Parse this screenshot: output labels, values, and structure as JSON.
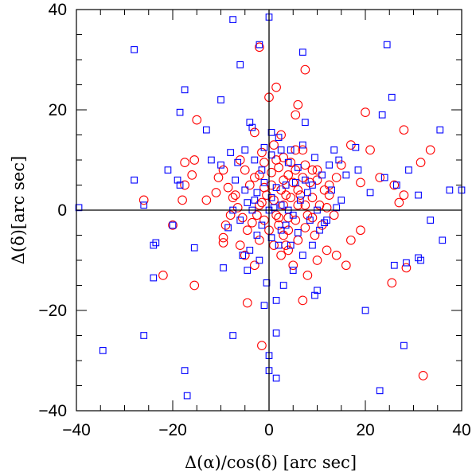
{
  "chart_data": {
    "type": "scatter",
    "title": "",
    "xlabel": "Δ(α)/cos(δ) [arc sec]",
    "ylabel": "Δ(δ)[arc sec]",
    "xlim": [
      -40,
      40
    ],
    "ylim": [
      -40,
      40
    ],
    "x_ticks": [
      -40,
      -20,
      0,
      20,
      40
    ],
    "y_ticks": [
      -40,
      -20,
      0,
      20,
      40
    ],
    "x_tick_labels": [
      "−40",
      "−20",
      "0",
      "20",
      "40"
    ],
    "y_tick_labels": [
      "−40",
      "−20",
      "0",
      "20",
      "40"
    ],
    "grid": false,
    "zero_lines": true,
    "series": [
      {
        "marker": "circle",
        "color": "#ff0000",
        "points": [
          [
            -2,
            32.5
          ],
          [
            1.5,
            24.5
          ],
          [
            6,
            21
          ],
          [
            5.5,
            19
          ],
          [
            7.5,
            28
          ],
          [
            0,
            22.5
          ],
          [
            -3,
            15.5
          ],
          [
            -15,
            18
          ],
          [
            -17.5,
            9.5
          ],
          [
            -15.5,
            10
          ],
          [
            -17.5,
            5
          ],
          [
            -16,
            7
          ],
          [
            -18,
            2
          ],
          [
            -26,
            2
          ],
          [
            -20,
            -3
          ],
          [
            -22,
            -13
          ],
          [
            -15.5,
            -15
          ],
          [
            -13,
            2
          ],
          [
            -10.5,
            6.5
          ],
          [
            -11,
            3.5
          ],
          [
            -9.5,
            8
          ],
          [
            -9.5,
            -6.5
          ],
          [
            -9.5,
            -5.5
          ],
          [
            -6,
            -7
          ],
          [
            -5,
            -9
          ],
          [
            -3,
            -11
          ],
          [
            -4.5,
            -18.5
          ],
          [
            -1.5,
            -27
          ],
          [
            -2,
            7
          ],
          [
            -1,
            9.5
          ],
          [
            -1.5,
            11.5
          ],
          [
            1,
            13
          ],
          [
            2.5,
            15
          ],
          [
            3,
            10.5
          ],
          [
            2,
            8.5
          ],
          [
            4,
            7
          ],
          [
            5.5,
            12
          ],
          [
            7,
            12
          ],
          [
            7.5,
            9
          ],
          [
            9,
            8
          ],
          [
            10,
            6
          ],
          [
            11.5,
            4
          ],
          [
            12.5,
            3
          ],
          [
            14,
            6.5
          ],
          [
            15,
            9
          ],
          [
            17,
            13
          ],
          [
            19,
            5.5
          ],
          [
            20,
            19.5
          ],
          [
            21,
            12
          ],
          [
            23,
            6.5
          ],
          [
            26,
            5
          ],
          [
            27,
            1.5
          ],
          [
            28,
            3
          ],
          [
            28,
            16
          ],
          [
            31.5,
            9.5
          ],
          [
            33.5,
            12
          ],
          [
            25.5,
            -14.5
          ],
          [
            28.5,
            -11.5
          ],
          [
            32,
            -33
          ],
          [
            19,
            -4
          ],
          [
            17,
            -6
          ],
          [
            16,
            -11
          ],
          [
            14,
            -9
          ],
          [
            12,
            -8
          ],
          [
            10,
            -10
          ],
          [
            8,
            -13
          ],
          [
            7,
            -18
          ],
          [
            5,
            -11
          ],
          [
            4,
            -8
          ],
          [
            3,
            -5
          ],
          [
            2,
            -3
          ],
          [
            1.5,
            -1
          ],
          [
            4,
            -1.5
          ],
          [
            6,
            1
          ],
          [
            8,
            -1
          ],
          [
            9,
            2.5
          ],
          [
            6.5,
            3
          ],
          [
            5,
            5.5
          ],
          [
            3.5,
            3
          ],
          [
            2.5,
            4
          ],
          [
            1,
            2
          ],
          [
            0.5,
            5
          ],
          [
            -0.5,
            3
          ],
          [
            -1.5,
            1.5
          ],
          [
            -2.5,
            -1
          ],
          [
            -3.5,
            -2.5
          ],
          [
            -4.5,
            -4
          ],
          [
            -5.5,
            -1.5
          ],
          [
            -6.5,
            0.5
          ],
          [
            -7.5,
            2.5
          ],
          [
            -8.5,
            4.5
          ],
          [
            -4,
            5
          ],
          [
            -3,
            6.5
          ],
          [
            -5,
            8
          ],
          [
            -6,
            10
          ],
          [
            -7,
            3
          ],
          [
            -8,
            -1
          ],
          [
            -9,
            -3
          ],
          [
            -2,
            -6
          ],
          [
            0,
            -4
          ],
          [
            1,
            -7
          ],
          [
            2.5,
            -9
          ],
          [
            4,
            -4
          ],
          [
            6,
            -6
          ],
          [
            7.5,
            -3.5
          ],
          [
            9.5,
            -5
          ],
          [
            11,
            -3
          ],
          [
            12,
            0.5
          ],
          [
            13.5,
            -1
          ],
          [
            10,
            8
          ],
          [
            8.5,
            5.5
          ],
          [
            7,
            6.5
          ],
          [
            5.5,
            8
          ],
          [
            3,
            1
          ],
          [
            2,
            -1.5
          ],
          [
            -1,
            -2
          ],
          [
            -2,
            1
          ],
          [
            -1,
            4.5
          ],
          [
            0.5,
            7.5
          ],
          [
            1.5,
            10
          ],
          [
            4.5,
            9.5
          ],
          [
            6,
            4
          ],
          [
            7.5,
            1
          ],
          [
            9,
            -1.5
          ],
          [
            10.5,
            1
          ],
          [
            12.5,
            5
          ],
          [
            3,
            6
          ],
          [
            4.5,
            2.5
          ],
          [
            5.5,
            -2
          ],
          [
            3.5,
            -7
          ]
        ]
      },
      {
        "marker": "square",
        "color": "#0000ff",
        "points": [
          [
            -7.5,
            38
          ],
          [
            0,
            38.5
          ],
          [
            -2,
            33
          ],
          [
            -6,
            29
          ],
          [
            7,
            31.5
          ],
          [
            24.5,
            33
          ],
          [
            25.5,
            22.5
          ],
          [
            -28,
            32
          ],
          [
            -17.5,
            24
          ],
          [
            -18.5,
            19.5
          ],
          [
            -10,
            22
          ],
          [
            -13,
            16
          ],
          [
            -4,
            17.5
          ],
          [
            -3.5,
            16.5
          ],
          [
            0.5,
            15.5
          ],
          [
            7.5,
            17.5
          ],
          [
            18,
            12.5
          ],
          [
            23.5,
            19
          ],
          [
            35.5,
            16
          ],
          [
            31,
            3
          ],
          [
            40,
            4
          ],
          [
            37.5,
            4
          ],
          [
            -39.5,
            0.5
          ],
          [
            -26,
            1
          ],
          [
            -28,
            6
          ],
          [
            -21,
            8
          ],
          [
            -19,
            6
          ],
          [
            -18.5,
            5
          ],
          [
            -23.5,
            -6.5
          ],
          [
            -24,
            -7
          ],
          [
            -24,
            -13.5
          ],
          [
            -20,
            -3
          ],
          [
            -15.5,
            -7.5
          ],
          [
            -12,
            10
          ],
          [
            -10,
            9
          ],
          [
            -8,
            11.5
          ],
          [
            -7,
            6
          ],
          [
            -5,
            4
          ],
          [
            -3,
            2
          ],
          [
            -1.5,
            8
          ],
          [
            0.5,
            11
          ],
          [
            2.5,
            12
          ],
          [
            4,
            9.5
          ],
          [
            6,
            8.5
          ],
          [
            7.5,
            6
          ],
          [
            9,
            5
          ],
          [
            11,
            7
          ],
          [
            12.5,
            9
          ],
          [
            13.5,
            12
          ],
          [
            14.5,
            10
          ],
          [
            16,
            7
          ],
          [
            18.5,
            8
          ],
          [
            21,
            3.5
          ],
          [
            24,
            6.5
          ],
          [
            26.5,
            5
          ],
          [
            15,
            2
          ],
          [
            14,
            0.5
          ],
          [
            12,
            -2
          ],
          [
            10.5,
            -4
          ],
          [
            9,
            -7
          ],
          [
            7,
            -9
          ],
          [
            5,
            -12
          ],
          [
            3,
            -15
          ],
          [
            1.5,
            -18
          ],
          [
            -2.5,
            -5
          ],
          [
            -4,
            -8
          ],
          [
            -5.5,
            -9
          ],
          [
            -4.5,
            -12
          ],
          [
            -2,
            -10
          ],
          [
            -0.5,
            -14.5
          ],
          [
            -1,
            -19
          ],
          [
            1.5,
            -24.5
          ],
          [
            0,
            -29
          ],
          [
            0,
            -32
          ],
          [
            1.5,
            -33.5
          ],
          [
            -7.5,
            -25
          ],
          [
            -17.5,
            -32
          ],
          [
            -17,
            -37
          ],
          [
            -26,
            -25
          ],
          [
            -34.5,
            -28
          ],
          [
            -9.5,
            -11.5
          ],
          [
            9.5,
            -17
          ],
          [
            10,
            -16
          ],
          [
            20,
            -20
          ],
          [
            23,
            -36
          ],
          [
            28,
            -27
          ],
          [
            28.5,
            -10.5
          ],
          [
            26,
            -11
          ],
          [
            31,
            -9.5
          ],
          [
            31.5,
            -10
          ],
          [
            33.5,
            -2
          ],
          [
            36,
            -6
          ],
          [
            29,
            8
          ],
          [
            0,
            0
          ],
          [
            0.5,
            2.5
          ],
          [
            1.5,
            4.5
          ],
          [
            2.5,
            1
          ],
          [
            3.5,
            5
          ],
          [
            -1,
            5.5
          ],
          [
            -2.5,
            3.5
          ],
          [
            -3.5,
            0
          ],
          [
            -4.5,
            1.5
          ],
          [
            -6,
            -2
          ],
          [
            -7.5,
            0
          ],
          [
            -8.5,
            -3.5
          ],
          [
            -1.5,
            -3
          ],
          [
            0.5,
            -5.5
          ],
          [
            2,
            -7
          ],
          [
            3.5,
            -3
          ],
          [
            5,
            -1
          ],
          [
            6.5,
            2
          ],
          [
            8,
            3.5
          ],
          [
            10,
            0
          ],
          [
            11.5,
            -2.5
          ],
          [
            13,
            4
          ],
          [
            9.5,
            10.5
          ],
          [
            7,
            13
          ],
          [
            4.5,
            12
          ],
          [
            2,
            14.5
          ],
          [
            -1,
            12.5
          ],
          [
            -3,
            10
          ],
          [
            -5,
            12
          ],
          [
            -6.5,
            9.5
          ],
          [
            1,
            0.5
          ],
          [
            4,
            0
          ],
          [
            5.5,
            5.5
          ],
          [
            8.5,
            -2
          ],
          [
            6,
            -4.5
          ],
          [
            4.5,
            -7
          ],
          [
            2.5,
            -4
          ]
        ]
      }
    ]
  }
}
